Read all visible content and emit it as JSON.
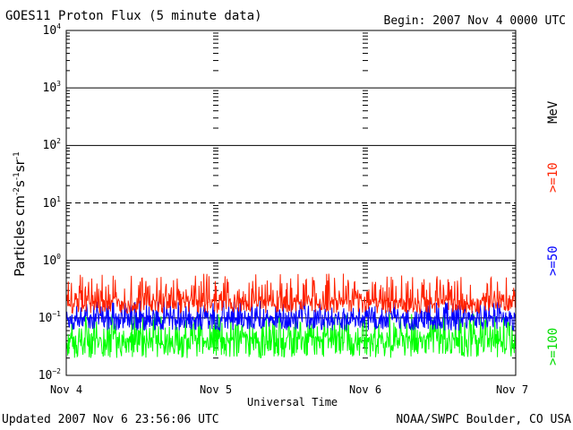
{
  "header": {
    "title": "GOES11 Proton Flux (5 minute data)",
    "begin": "Begin: 2007 Nov 4 0000 UTC"
  },
  "footer": {
    "updated": "Updated 2007 Nov  6 23:56:06 UTC",
    "source": "NOAA/SWPC Boulder, CO USA"
  },
  "chart_data": {
    "type": "line",
    "title": "GOES11 Proton Flux (5 minute data)",
    "xlabel": "Universal Time",
    "ylabel": "Particles cm-2s-1sr-1",
    "y_scale": "log",
    "ylim": [
      0.01,
      10000
    ],
    "x_categories": [
      "Nov 4",
      "Nov 5",
      "Nov 6",
      "Nov 7"
    ],
    "y_ticks": [
      "10^-2",
      "10^-1",
      "10^0",
      "10^1",
      "10^2",
      "10^3",
      "10^4"
    ],
    "legend_unit": "MeV",
    "legend_placement": "right",
    "series": [
      {
        "name": ">=10",
        "color": "#ff2200",
        "typical": 0.2,
        "range": [
          0.12,
          0.6
        ]
      },
      {
        "name": ">=50",
        "color": "#0000ff",
        "typical": 0.1,
        "range": [
          0.06,
          0.2
        ]
      },
      {
        "name": ">=100",
        "color": "#00ff00",
        "typical": 0.045,
        "range": [
          0.02,
          0.12
        ]
      }
    ],
    "grid": true
  }
}
